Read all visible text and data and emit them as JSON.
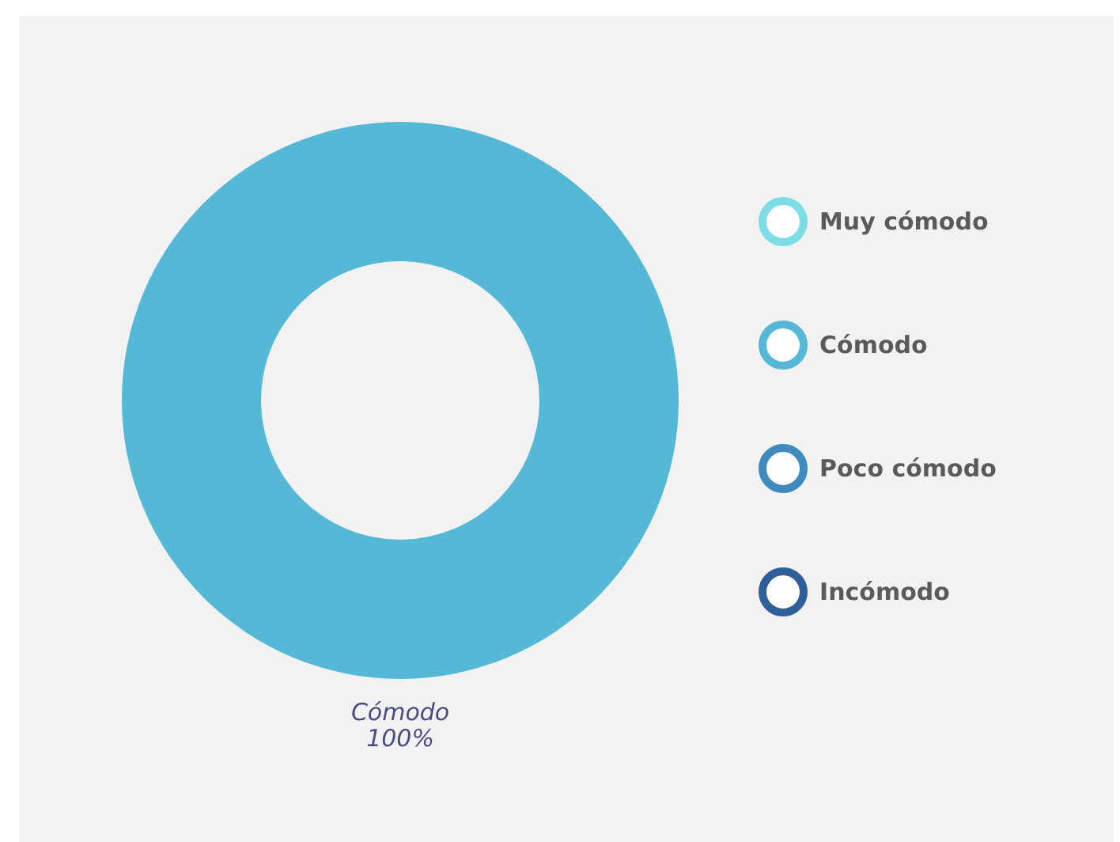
{
  "chart_data": {
    "type": "donut",
    "categories": [
      "Muy cómodo",
      "Cómodo",
      "Poco cómodo",
      "Incómodo"
    ],
    "values": [
      0,
      100,
      0,
      0
    ],
    "colors": [
      "#7ddde6",
      "#55b8d7",
      "#3f8bbf",
      "#2f5f98"
    ],
    "value_labels": [
      null,
      "100%",
      null,
      null
    ],
    "legend": "right"
  }
}
